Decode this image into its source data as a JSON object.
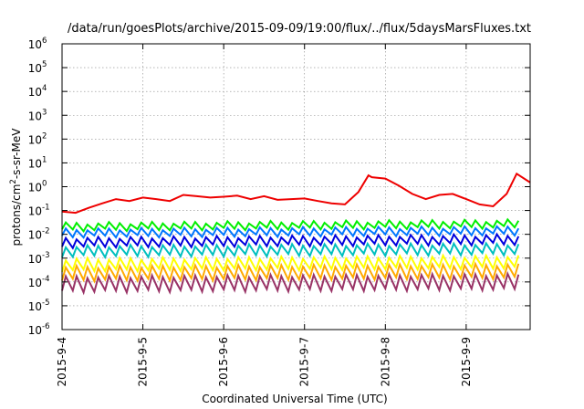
{
  "chart_data": {
    "type": "line",
    "title": "/data/run/goesPlots/archive/2015-09-09/19:00/flux/../flux/5daysMarsFluxes.txt",
    "xlabel": "Coordinated Universal Time (UTC)",
    "ylabel": "protons/cm²-s-sr-MeV",
    "ylabel_parts": {
      "base": "protons/cm",
      "sup": "2",
      "rest": "-s-sr-MeV"
    },
    "y_scale": "log",
    "ylim": [
      1e-06,
      1000000.0
    ],
    "y_ticks": [
      {
        "value": 1e-06,
        "base": "10",
        "exp": "-6"
      },
      {
        "value": 1e-05,
        "base": "10",
        "exp": "-5"
      },
      {
        "value": 0.0001,
        "base": "10",
        "exp": "-4"
      },
      {
        "value": 0.001,
        "base": "10",
        "exp": "-3"
      },
      {
        "value": 0.01,
        "base": "10",
        "exp": "-2"
      },
      {
        "value": 0.1,
        "base": "10",
        "exp": "-1"
      },
      {
        "value": 1,
        "base": "10",
        "exp": "0"
      },
      {
        "value": 10,
        "base": "10",
        "exp": "1"
      },
      {
        "value": 100,
        "base": "10",
        "exp": "2"
      },
      {
        "value": 1000,
        "base": "10",
        "exp": "3"
      },
      {
        "value": 10000,
        "base": "10",
        "exp": "4"
      },
      {
        "value": 100000,
        "base": "10",
        "exp": "5"
      },
      {
        "value": 1000000,
        "base": "10",
        "exp": "6"
      }
    ],
    "xlim": [
      "2015-09-04T00:00",
      "2015-09-09T19:00"
    ],
    "x_ticks": [
      {
        "value": "2015-09-04T00:00",
        "label": "2015-9-4"
      },
      {
        "value": "2015-09-05T00:00",
        "label": "2015-9-5"
      },
      {
        "value": "2015-09-06T00:00",
        "label": "2015-9-6"
      },
      {
        "value": "2015-09-07T00:00",
        "label": "2015-9-7"
      },
      {
        "value": "2015-09-08T00:00",
        "label": "2015-9-8"
      },
      {
        "value": "2015-09-09T00:00",
        "label": "2015-9-9"
      }
    ],
    "grid": true,
    "legend": "none",
    "series": [
      {
        "color": "#ee0000",
        "x": [
          "2015-09-04T00:00",
          "2015-09-04T04:00",
          "2015-09-04T08:00",
          "2015-09-04T12:00",
          "2015-09-04T16:00",
          "2015-09-04T20:00",
          "2015-09-05T00:00",
          "2015-09-05T04:00",
          "2015-09-05T08:00",
          "2015-09-05T12:00",
          "2015-09-05T16:00",
          "2015-09-05T20:00",
          "2015-09-06T00:00",
          "2015-09-06T04:00",
          "2015-09-06T08:00",
          "2015-09-06T12:00",
          "2015-09-06T16:00",
          "2015-09-06T20:00",
          "2015-09-07T00:00",
          "2015-09-07T04:00",
          "2015-09-07T08:00",
          "2015-09-07T12:00",
          "2015-09-07T16:00",
          "2015-09-07T19:00",
          "2015-09-07T20:00",
          "2015-09-08T00:00",
          "2015-09-08T04:00",
          "2015-09-08T08:00",
          "2015-09-08T12:00",
          "2015-09-08T16:00",
          "2015-09-08T20:00",
          "2015-09-09T00:00",
          "2015-09-09T04:00",
          "2015-09-09T08:00",
          "2015-09-09T12:00",
          "2015-09-09T15:00",
          "2015-09-09T19:00"
        ],
        "y": [
          0.09,
          0.08,
          0.13,
          0.2,
          0.3,
          0.25,
          0.35,
          0.3,
          0.25,
          0.45,
          0.4,
          0.35,
          0.38,
          0.42,
          0.3,
          0.4,
          0.28,
          0.3,
          0.32,
          0.25,
          0.2,
          0.18,
          0.6,
          3,
          2.5,
          2.2,
          1.1,
          0.5,
          0.3,
          0.45,
          0.5,
          0.3,
          0.18,
          0.15,
          0.5,
          3.5,
          1.5
        ],
        "cycle": 0
      },
      {
        "color": "#00ee00",
        "x": [
          "2015-09-04T00:00",
          "2015-09-09T19:00"
        ],
        "y": [
          0.015,
          0.02
        ],
        "peak_factor": 1.9,
        "cycle": 3.2
      },
      {
        "color": "#0077ff",
        "x": [
          "2015-09-04T00:00",
          "2015-09-09T19:00"
        ],
        "y": [
          0.008,
          0.01
        ],
        "peak_factor": 2.0,
        "cycle": 3.2
      },
      {
        "color": "#0000dd",
        "x": [
          "2015-09-04T00:00",
          "2015-09-09T19:00"
        ],
        "y": [
          0.003,
          0.004
        ],
        "peak_factor": 2.3,
        "cycle": 3.2
      },
      {
        "color": "#00bfbf",
        "x": [
          "2015-09-04T00:00",
          "2015-09-09T19:00"
        ],
        "y": [
          0.0012,
          0.0015
        ],
        "peak_factor": 2.6,
        "cycle": 3.2
      },
      {
        "color": "#ffff00",
        "x": [
          "2015-09-04T00:00",
          "2015-09-09T19:00"
        ],
        "y": [
          0.0003,
          0.0004
        ],
        "peak_factor": 3.0,
        "cycle": 3.2
      },
      {
        "color": "#ffaa00",
        "x": [
          "2015-09-04T00:00",
          "2015-09-09T19:00"
        ],
        "y": [
          0.00012,
          0.00015
        ],
        "peak_factor": 3.5,
        "cycle": 3.2
      },
      {
        "color": "#993366",
        "x": [
          "2015-09-04T00:00",
          "2015-09-09T19:00"
        ],
        "y": [
          4e-05,
          5e-05
        ],
        "peak_factor": 4.0,
        "cycle": 3.2
      }
    ]
  }
}
